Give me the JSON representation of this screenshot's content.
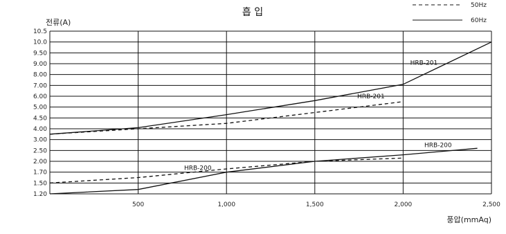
{
  "chart_data": {
    "type": "line",
    "title": "흡 입",
    "ylabel": "전류(A)",
    "xlabel": "풍압(mmAq)",
    "xlim": [
      0,
      2500
    ],
    "x_ticks": [
      {
        "v": 500,
        "label": "500"
      },
      {
        "v": 1000,
        "label": "1,000"
      },
      {
        "v": 1500,
        "label": "1,500"
      },
      {
        "v": 2000,
        "label": "2,000"
      },
      {
        "v": 2500,
        "label": "2,500"
      }
    ],
    "y_ticks": [
      "1.20",
      "1.50",
      "1.70",
      "2.00",
      "2.50",
      "3.00",
      "4.00",
      "4.50",
      "5.00",
      "6.00",
      "7.00",
      "8.00",
      "9.00",
      "9.50",
      "10.0",
      "10.5"
    ],
    "grid": true,
    "legend_position": "top-right",
    "legend": [
      {
        "label": "50Hz",
        "style": "dashed"
      },
      {
        "label": "60Hz",
        "style": "solid"
      }
    ],
    "series": [
      {
        "hz": "50Hz",
        "style": "dashed",
        "tag": "HRB-201",
        "x": [
          0,
          500,
          1000,
          1500,
          2000
        ],
        "y_idx": [
          5.5,
          6.0,
          6.5,
          7.5,
          8.5
        ]
      },
      {
        "hz": "60Hz",
        "style": "solid",
        "tag": "HRB-201",
        "x": [
          0,
          500,
          1000,
          1500,
          2000,
          2500
        ],
        "y_idx": [
          5.5,
          6.1,
          7.3,
          8.6,
          10.1,
          14.0
        ]
      },
      {
        "hz": "50Hz",
        "style": "dashed",
        "tag": "HRB-200",
        "x": [
          0,
          500,
          1000,
          1500,
          2000
        ],
        "y_idx": [
          1.0,
          1.5,
          2.3,
          3.0,
          3.3
        ]
      },
      {
        "hz": "60Hz",
        "style": "solid",
        "tag": "HRB-200",
        "x": [
          0,
          500,
          1000,
          1500,
          2000,
          2420
        ],
        "y_idx": [
          0.0,
          0.4,
          2.0,
          3.0,
          3.6,
          4.2
        ]
      }
    ],
    "annotations": [
      {
        "text": "HRB-201",
        "x": 2040,
        "y_idx": 11.9
      },
      {
        "text": "HRB-201",
        "x": 1740,
        "y_idx": 8.8
      },
      {
        "text": "HRB-200",
        "x": 2120,
        "y_idx": 4.3
      },
      {
        "text": "HRB-200",
        "x": 760,
        "y_idx": 2.2
      }
    ]
  }
}
